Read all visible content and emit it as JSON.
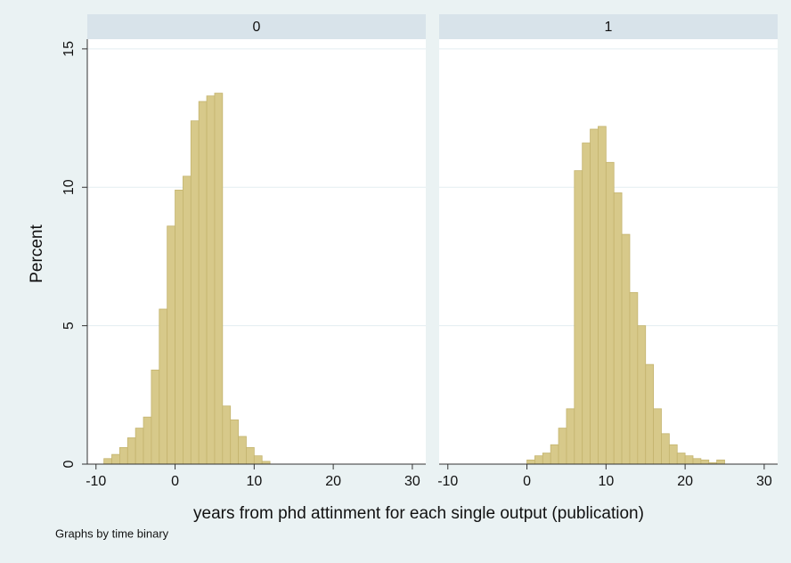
{
  "ylabel": "Percent",
  "xlabel": "years from phd attinment for each single output (publication)",
  "note": "Graphs by time binary",
  "chart_data": [
    {
      "type": "histogram",
      "title": "0",
      "color": "#d7c98a",
      "grid": true,
      "bins": [
        -9,
        -8,
        -7,
        -6,
        -5,
        -4,
        -3,
        -2,
        -1,
        0,
        1,
        2,
        3,
        4,
        5,
        6,
        7,
        8,
        9,
        10,
        11,
        12
      ],
      "counts": [
        0.2,
        0.35,
        0.6,
        0.95,
        1.3,
        1.7,
        3.4,
        5.6,
        8.6,
        9.9,
        10.4,
        12.4,
        13.1,
        13.3,
        13.4,
        2.1,
        1.6,
        1.0,
        0.6,
        0.3,
        0.1
      ],
      "xlim": [
        -11.1,
        31.7
      ],
      "xticks": [
        -10,
        0,
        10,
        20,
        30
      ],
      "ylim": [
        0,
        15.35
      ],
      "yticks": [
        0,
        5,
        10,
        15
      ]
    },
    {
      "type": "histogram",
      "title": "1",
      "color": "#d7c98a",
      "grid": true,
      "bins": [
        0,
        1,
        2,
        3,
        4,
        5,
        6,
        7,
        8,
        9,
        10,
        11,
        12,
        13,
        14,
        15,
        16,
        17,
        18,
        19,
        20,
        21,
        22,
        23,
        24,
        25
      ],
      "counts": [
        0.15,
        0.3,
        0.4,
        0.7,
        1.3,
        2.0,
        10.6,
        11.6,
        12.1,
        12.2,
        10.9,
        9.8,
        8.3,
        6.2,
        5.0,
        3.6,
        2.0,
        1.1,
        0.7,
        0.4,
        0.3,
        0.2,
        0.15,
        0.05,
        0.15
      ],
      "xlim": [
        -11.1,
        31.7
      ],
      "xticks": [
        -10,
        0,
        10,
        20,
        30
      ],
      "ylim": [
        0,
        15.35
      ],
      "yticks": [
        0,
        5,
        10,
        15
      ]
    }
  ]
}
